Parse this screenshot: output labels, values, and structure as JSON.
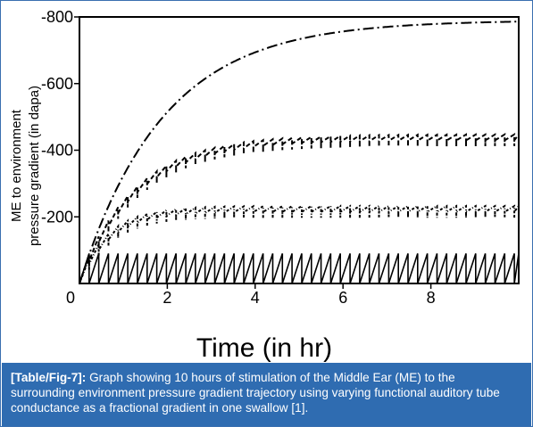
{
  "chart_data": {
    "type": "line",
    "title": "",
    "xlabel": "Time (in hr)",
    "ylabel_line1": "ME to environment",
    "ylabel_line2": "pressure gradient (in dapa)",
    "xlim": [
      0,
      10
    ],
    "ylim": [
      0,
      -800
    ],
    "x_ticks": [
      0,
      2,
      4,
      6,
      8
    ],
    "x_tick_labels": [
      "0",
      "2",
      "4",
      "6",
      "8"
    ],
    "y_ticks": [
      -200,
      -400,
      -600,
      -800
    ],
    "y_tick_labels": [
      "-200",
      "-400",
      "-600",
      "-800"
    ],
    "grid": false,
    "legend": "none",
    "series": [
      {
        "style": "dash-dot",
        "shape": "saturating",
        "plateau": -790,
        "time_constant_hr": 1.9,
        "sawtooth_amplitude": 0,
        "swallow_period_hr": 0
      },
      {
        "style": "short-dash",
        "shape": "saturating-sawtooth",
        "plateau": -430,
        "time_constant_hr": 1.3,
        "sawtooth_amplitude": 35,
        "swallow_period_hr": 0.22
      },
      {
        "style": "dotted-dash",
        "shape": "saturating-sawtooth",
        "plateau": -215,
        "time_constant_hr": 0.7,
        "sawtooth_amplitude": 35,
        "swallow_period_hr": 0.22
      },
      {
        "style": "solid",
        "shape": "sawtooth",
        "plateau": -90,
        "time_constant_hr": 0,
        "sawtooth_amplitude": 90,
        "swallow_period_hr": 0.22
      }
    ]
  },
  "caption": {
    "label": "[Table/Fig-7]:",
    "text": " Graph showing 10 hours of stimulation of the Middle Ear (ME) to the surrounding environment pressure gradient trajectory using varying functional auditory tube conductance as a fractional gradient in one swallow [1]."
  }
}
